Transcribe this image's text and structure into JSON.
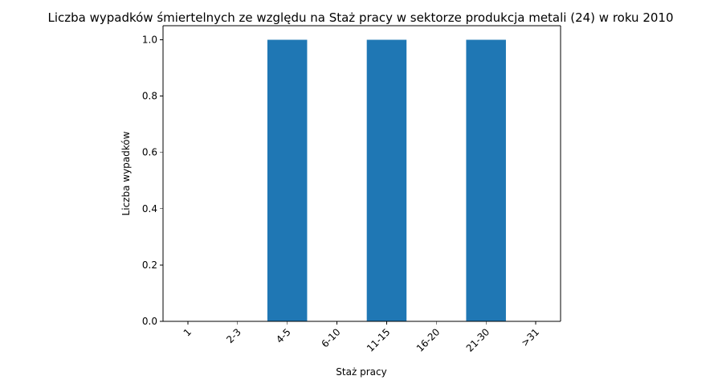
{
  "chart_data": {
    "type": "bar",
    "title": "Liczba wypadków śmiertelnych ze względu na Staż pracy w sektorze produkcja metali (24)   w roku 2010",
    "xlabel": "Staż pracy",
    "ylabel": "Liczba wypadków",
    "categories": [
      "1",
      "2-3",
      "4-5",
      "6-10",
      "11-15",
      "16-20",
      "21-30",
      ">31"
    ],
    "values": [
      0,
      0,
      1,
      0,
      1,
      0,
      1,
      0
    ],
    "ylim": [
      0,
      1.05
    ],
    "yticks": [
      0.0,
      0.2,
      0.4,
      0.6,
      0.8,
      1.0
    ],
    "ytick_labels": [
      "0.0",
      "0.2",
      "0.4",
      "0.6",
      "0.8",
      "1.0"
    ],
    "xtick_rotation": 45,
    "bar_color": "#1f77b4",
    "grid": false,
    "legend": "none"
  }
}
